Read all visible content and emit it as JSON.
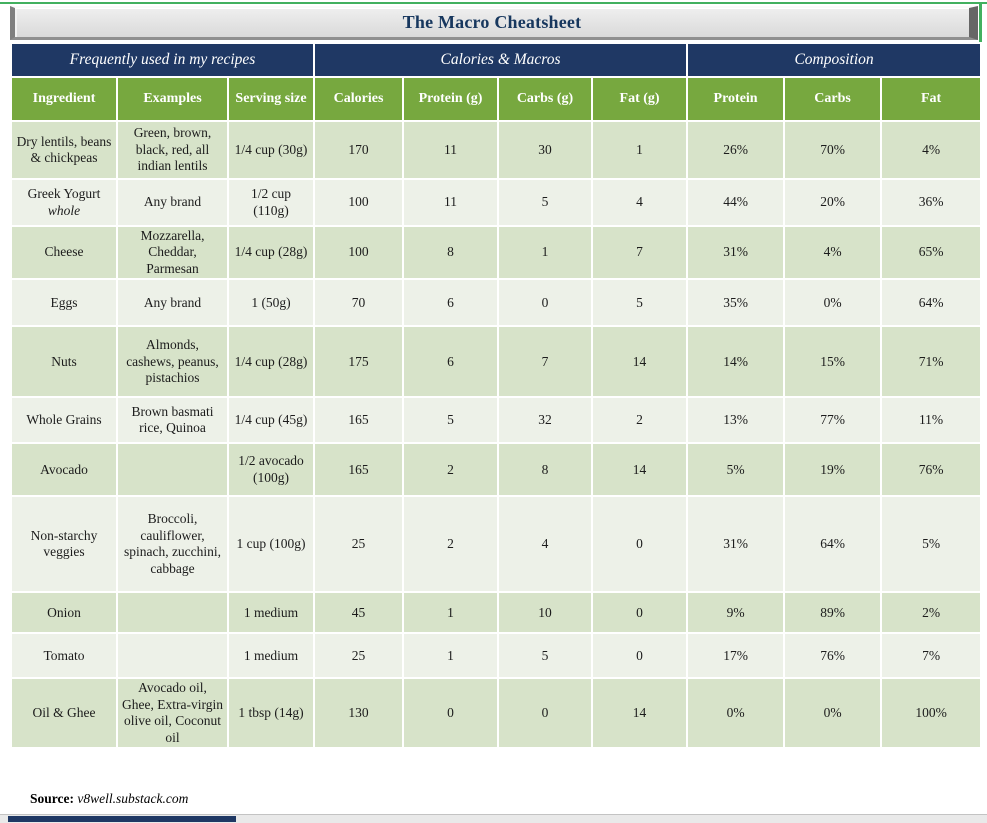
{
  "title": "The Macro Cheatsheet",
  "table": {
    "groups": [
      {
        "label": "Frequently used in my recipes",
        "span": 3
      },
      {
        "label": "Calories & Macros",
        "span": 4
      },
      {
        "label": "Composition",
        "span": 3
      }
    ],
    "columns": [
      "Ingredient",
      "Examples",
      "Serving size",
      "Calories",
      "Protein (g)",
      "Carbs (g)",
      "Fat (g)",
      "Protein",
      "Carbs",
      "Fat"
    ],
    "rows": [
      [
        "Dry lentils, beans & chickpeas",
        "Green, brown, black, red, all indian lentils",
        "1/4 cup (30g)",
        "170",
        "11",
        "30",
        "1",
        "26%",
        "70%",
        "4%"
      ],
      [
        {
          "text": "Greek Yogurt",
          "italic": "whole"
        },
        "Any brand",
        "1/2 cup (110g)",
        "100",
        "11",
        "5",
        "4",
        "44%",
        "20%",
        "36%"
      ],
      [
        "Cheese",
        "Mozzarella, Cheddar, Parmesan",
        "1/4 cup (28g)",
        "100",
        "8",
        "1",
        "7",
        "31%",
        "4%",
        "65%"
      ],
      [
        "Eggs",
        "Any brand",
        "1 (50g)",
        "70",
        "6",
        "0",
        "5",
        "35%",
        "0%",
        "64%"
      ],
      [
        "Nuts",
        "Almonds, cashews, peanus, pistachios",
        "1/4 cup (28g)",
        "175",
        "6",
        "7",
        "14",
        "14%",
        "15%",
        "71%"
      ],
      [
        "Whole Grains",
        "Brown basmati rice, Quinoa",
        "1/4 cup (45g)",
        "165",
        "5",
        "32",
        "2",
        "13%",
        "77%",
        "11%"
      ],
      [
        "Avocado",
        "",
        "1/2 avocado (100g)",
        "165",
        "2",
        "8",
        "14",
        "5%",
        "19%",
        "76%"
      ],
      [
        "Non-starchy veggies",
        "Broccoli, cauliflower, spinach, zucchini, cabbage",
        "1 cup (100g)",
        "25",
        "2",
        "4",
        "0",
        "31%",
        "64%",
        "5%"
      ],
      [
        "Onion",
        "",
        "1 medium",
        "45",
        "1",
        "10",
        "0",
        "9%",
        "89%",
        "2%"
      ],
      [
        "Tomato",
        "",
        "1 medium",
        "25",
        "1",
        "5",
        "0",
        "17%",
        "76%",
        "7%"
      ],
      [
        "Oil & Ghee",
        "Avocado oil, Ghee, Extra-virgin olive oil, Coconut oil",
        "1 tbsp (14g)",
        "130",
        "0",
        "0",
        "14",
        "0%",
        "0%",
        "100%"
      ]
    ]
  },
  "source": {
    "label": "Source:",
    "value": "v8well.substack.com"
  },
  "colors": {
    "navy": "#1f3864",
    "header_green": "#77a83f",
    "row_green": "#d7e3c9",
    "row_light": "#edf1e8",
    "accent_green_line": "#42b05f",
    "title_face_gray": "#e2e2e2"
  }
}
